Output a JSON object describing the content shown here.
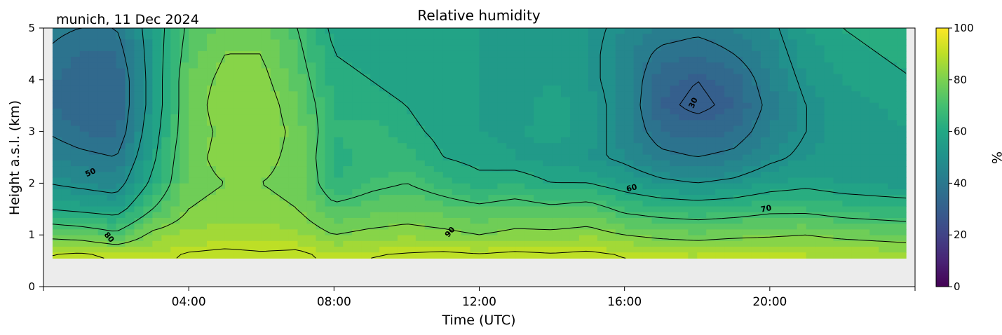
{
  "header": {
    "location_date": "munich, 11 Dec 2024",
    "title": "Relative humidity"
  },
  "chart_data": {
    "type": "heatmap",
    "title": "Relative humidity",
    "subtitle": "munich, 11 Dec 2024",
    "xlabel": "Time (UTC)",
    "ylabel": "Height a.s.l. (km)",
    "xlim": [
      "00:00",
      "24:00"
    ],
    "ylim": [
      0,
      5
    ],
    "x_ticks": [
      "04:00",
      "08:00",
      "12:00",
      "16:00",
      "20:00"
    ],
    "y_ticks": [
      "0",
      "1",
      "2",
      "3",
      "4",
      "5"
    ],
    "data_bottom_km": 0.55,
    "colorbar": {
      "label": "%",
      "range": [
        0,
        100
      ],
      "ticks": [
        "0",
        "20",
        "40",
        "60",
        "80",
        "100"
      ],
      "colormap": "viridis"
    },
    "contour_levels": [
      30,
      40,
      50,
      60,
      70,
      80,
      90
    ],
    "contour_labels": [
      "50",
      "80",
      "90",
      "60",
      "70",
      "30"
    ],
    "time_hours": [
      0,
      1,
      2,
      3,
      4,
      5,
      6,
      7,
      8,
      9,
      10,
      11,
      12,
      13,
      14,
      15,
      16,
      17,
      18,
      19,
      20,
      21,
      22,
      23,
      24
    ],
    "height_km": [
      0.6,
      1.0,
      1.5,
      2.0,
      2.5,
      3.0,
      3.5,
      4.0,
      4.5,
      5.0
    ],
    "values": [
      [
        90,
        92,
        89,
        88,
        91,
        92,
        91,
        92,
        88,
        90,
        91,
        92,
        91,
        92,
        91,
        92,
        90,
        89,
        88,
        90,
        89,
        88,
        88,
        87,
        86
      ],
      [
        78,
        76,
        72,
        82,
        85,
        86,
        86,
        85,
        80,
        82,
        83,
        82,
        80,
        82,
        82,
        83,
        80,
        78,
        77,
        78,
        79,
        80,
        78,
        77,
        76
      ],
      [
        60,
        58,
        56,
        70,
        80,
        82,
        82,
        80,
        72,
        74,
        76,
        74,
        72,
        74,
        72,
        74,
        68,
        66,
        65,
        66,
        68,
        68,
        66,
        65,
        64
      ],
      [
        50,
        48,
        46,
        62,
        78,
        80,
        80,
        78,
        64,
        68,
        70,
        66,
        62,
        64,
        60,
        60,
        56,
        52,
        50,
        52,
        56,
        58,
        56,
        55,
        54
      ],
      [
        45,
        42,
        40,
        58,
        78,
        82,
        82,
        78,
        62,
        66,
        66,
        60,
        58,
        56,
        54,
        52,
        48,
        42,
        40,
        42,
        48,
        52,
        54,
        54,
        54
      ],
      [
        40,
        36,
        34,
        56,
        76,
        82,
        84,
        78,
        64,
        66,
        62,
        58,
        56,
        55,
        58,
        54,
        46,
        36,
        34,
        36,
        44,
        50,
        54,
        55,
        56
      ],
      [
        38,
        32,
        32,
        54,
        76,
        84,
        84,
        76,
        64,
        62,
        60,
        56,
        56,
        54,
        58,
        54,
        46,
        32,
        28,
        32,
        42,
        50,
        54,
        56,
        58
      ],
      [
        38,
        32,
        32,
        54,
        76,
        82,
        82,
        74,
        62,
        60,
        58,
        56,
        56,
        54,
        56,
        52,
        46,
        34,
        30,
        34,
        44,
        52,
        56,
        58,
        60
      ],
      [
        40,
        36,
        36,
        54,
        74,
        80,
        80,
        72,
        60,
        58,
        56,
        56,
        56,
        54,
        54,
        52,
        46,
        38,
        36,
        40,
        46,
        54,
        58,
        60,
        62
      ],
      [
        42,
        40,
        40,
        54,
        72,
        78,
        78,
        70,
        58,
        56,
        56,
        56,
        56,
        54,
        54,
        52,
        48,
        44,
        42,
        44,
        48,
        56,
        60,
        62,
        64
      ]
    ]
  }
}
